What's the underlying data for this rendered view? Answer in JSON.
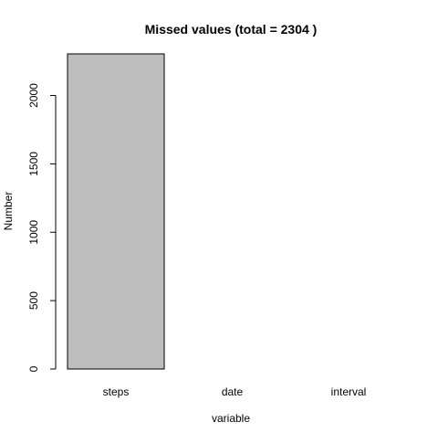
{
  "chart_data": {
    "type": "bar",
    "title": "Missed values (total =  2304 )",
    "xlabel": "variable",
    "ylabel": "Number",
    "categories": [
      "steps",
      "date",
      "interval"
    ],
    "values": [
      2304,
      0,
      0
    ],
    "ylim": [
      0,
      2304
    ],
    "yticks": [
      0,
      500,
      1000,
      1500,
      2000
    ],
    "ytick_labels": [
      "0",
      "500",
      "1000",
      "1500",
      "2000"
    ],
    "grid": false,
    "legend": "none",
    "bar_color": "#bebebe",
    "bar_edge_color": "#000000"
  }
}
